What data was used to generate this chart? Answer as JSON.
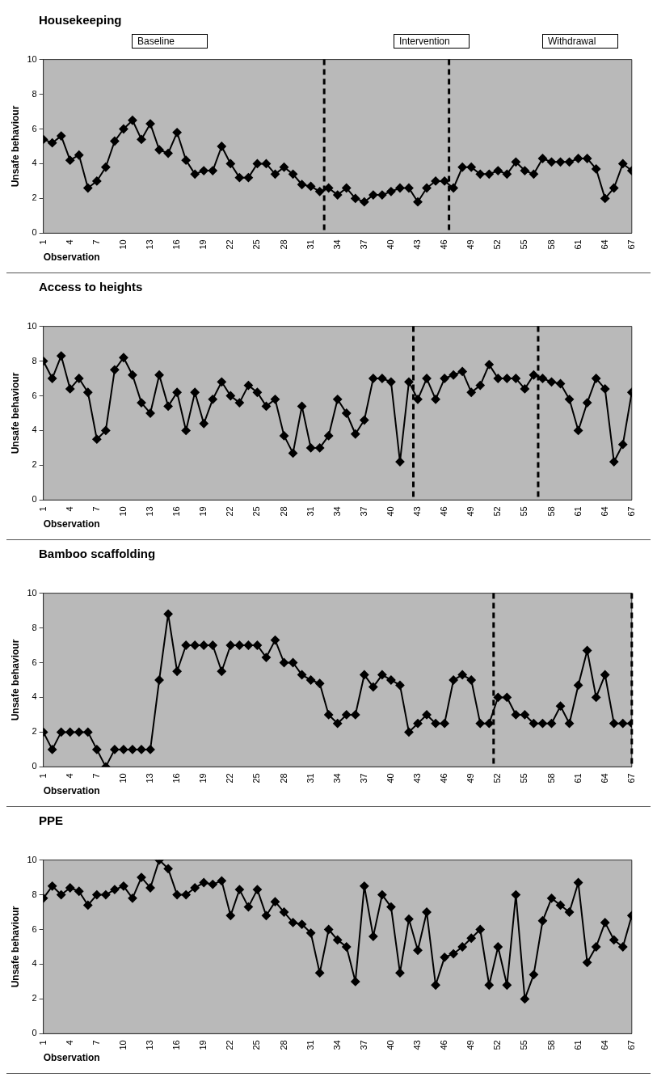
{
  "chart_data": [
    {
      "type": "line",
      "title": "Housekeeping",
      "xlabel": "Observation",
      "ylabel": "Unsafe behaviour",
      "annotations": [
        "Baseline",
        "Intervention",
        "Withdrawal"
      ],
      "marker": "diamond",
      "grid": false,
      "xlim": [
        1,
        67
      ],
      "xticks": [
        1,
        4,
        7,
        10,
        13,
        16,
        19,
        22,
        25,
        28,
        31,
        34,
        37,
        40,
        43,
        46,
        49,
        52,
        55,
        58,
        61,
        64,
        67
      ],
      "ylim": [
        0,
        10
      ],
      "yticks": [
        0,
        2,
        4,
        6,
        8,
        10
      ],
      "ref_lines": [
        {
          "axis": "x",
          "value": 32.5,
          "line_style": "dashed",
          "color": "#000000"
        },
        {
          "axis": "x",
          "value": 46.5,
          "line_style": "dashed",
          "color": "#000000"
        }
      ],
      "x": [
        1,
        2,
        3,
        4,
        5,
        6,
        7,
        8,
        9,
        10,
        11,
        12,
        13,
        14,
        15,
        16,
        17,
        18,
        19,
        20,
        21,
        22,
        23,
        24,
        25,
        26,
        27,
        28,
        29,
        30,
        31,
        32,
        33,
        34,
        35,
        36,
        37,
        38,
        39,
        40,
        41,
        42,
        43,
        44,
        45,
        46,
        47,
        48,
        49,
        50,
        51,
        52,
        53,
        54,
        55,
        56,
        57,
        58,
        59,
        60,
        61,
        62,
        63,
        64,
        65,
        66,
        67
      ],
      "series": [
        {
          "color": "#000000",
          "values": [
            5.4,
            5.2,
            5.6,
            4.2,
            4.5,
            2.6,
            3.0,
            3.8,
            5.3,
            6.0,
            6.5,
            5.4,
            6.3,
            4.8,
            4.6,
            5.8,
            4.2,
            3.4,
            3.6,
            3.6,
            5.0,
            4.0,
            3.2,
            3.2,
            4.0,
            4.0,
            3.4,
            3.8,
            3.4,
            2.8,
            2.7,
            2.4,
            2.6,
            2.2,
            2.6,
            2.0,
            1.8,
            2.2,
            2.2,
            2.4,
            2.6,
            2.6,
            1.8,
            2.6,
            3.0,
            3.0,
            2.6,
            3.8,
            3.8,
            3.4,
            3.4,
            3.6,
            3.4,
            4.1,
            3.6,
            3.4,
            4.3,
            4.1,
            4.1,
            4.1,
            4.3,
            4.3,
            3.7,
            2.0,
            2.6,
            4.0,
            3.6
          ]
        }
      ]
    },
    {
      "type": "line",
      "title": "Access to heights",
      "xlabel": "Observation",
      "ylabel": "Unsafe behaviour",
      "marker": "diamond",
      "grid": false,
      "xlim": [
        1,
        67
      ],
      "xticks": [
        1,
        4,
        7,
        10,
        13,
        16,
        19,
        22,
        25,
        28,
        31,
        34,
        37,
        40,
        43,
        46,
        49,
        52,
        55,
        58,
        61,
        64,
        67
      ],
      "ylim": [
        0,
        10
      ],
      "yticks": [
        0,
        2,
        4,
        6,
        8,
        10
      ],
      "ref_lines": [
        {
          "axis": "x",
          "value": 42.5,
          "line_style": "dashed",
          "color": "#000000"
        },
        {
          "axis": "x",
          "value": 56.5,
          "line_style": "dashed",
          "color": "#000000"
        }
      ],
      "x": [
        1,
        2,
        3,
        4,
        5,
        6,
        7,
        8,
        9,
        10,
        11,
        12,
        13,
        14,
        15,
        16,
        17,
        18,
        19,
        20,
        21,
        22,
        23,
        24,
        25,
        26,
        27,
        28,
        29,
        30,
        31,
        32,
        33,
        34,
        35,
        36,
        37,
        38,
        39,
        40,
        41,
        42,
        43,
        44,
        45,
        46,
        47,
        48,
        49,
        50,
        51,
        52,
        53,
        54,
        55,
        56,
        57,
        58,
        59,
        60,
        61,
        62,
        63,
        64,
        65,
        66,
        67
      ],
      "series": [
        {
          "color": "#000000",
          "values": [
            8.0,
            7.0,
            8.3,
            6.4,
            7.0,
            6.2,
            3.5,
            4.0,
            7.5,
            8.2,
            7.2,
            5.6,
            5.0,
            7.2,
            5.4,
            6.2,
            4.0,
            6.2,
            4.4,
            5.8,
            6.8,
            6.0,
            5.6,
            6.6,
            6.2,
            5.4,
            5.8,
            3.7,
            2.7,
            5.4,
            3.0,
            3.0,
            3.7,
            5.8,
            5.0,
            3.8,
            4.6,
            7.0,
            7.0,
            6.8,
            2.2,
            6.8,
            5.8,
            7.0,
            5.8,
            7.0,
            7.2,
            7.4,
            6.2,
            6.6,
            7.8,
            7.0,
            7.0,
            7.0,
            6.4,
            7.2,
            7.0,
            6.8,
            6.7,
            5.8,
            4.0,
            5.6,
            7.0,
            6.4,
            2.2,
            3.2,
            6.2
          ]
        }
      ]
    },
    {
      "type": "line",
      "title": "Bamboo scaffolding",
      "xlabel": "Observation",
      "ylabel": "Unsafe behaviour",
      "marker": "diamond",
      "grid": false,
      "xlim": [
        1,
        67
      ],
      "xticks": [
        1,
        4,
        7,
        10,
        13,
        16,
        19,
        22,
        25,
        28,
        31,
        34,
        37,
        40,
        43,
        46,
        49,
        52,
        55,
        58,
        61,
        64,
        67
      ],
      "ylim": [
        0,
        10
      ],
      "yticks": [
        0,
        2,
        4,
        6,
        8,
        10
      ],
      "ref_lines": [
        {
          "axis": "x",
          "value": 51.5,
          "line_style": "dashed",
          "color": "#000000"
        },
        {
          "axis": "x",
          "value": 67,
          "line_style": "dashed",
          "color": "#000000"
        }
      ],
      "x": [
        1,
        2,
        3,
        4,
        5,
        6,
        7,
        8,
        9,
        10,
        11,
        12,
        13,
        14,
        15,
        16,
        17,
        18,
        19,
        20,
        21,
        22,
        23,
        24,
        25,
        26,
        27,
        28,
        29,
        30,
        31,
        32,
        33,
        34,
        35,
        36,
        37,
        38,
        39,
        40,
        41,
        42,
        43,
        44,
        45,
        46,
        47,
        48,
        49,
        50,
        51,
        52,
        53,
        54,
        55,
        56,
        57,
        58,
        59,
        60,
        61,
        62,
        63,
        64,
        65,
        66,
        67
      ],
      "series": [
        {
          "color": "#000000",
          "values": [
            2,
            1,
            2,
            2,
            2,
            2,
            1,
            0,
            1,
            1,
            1,
            1,
            1,
            5,
            8.8,
            5.5,
            7,
            7,
            7,
            7,
            5.5,
            7,
            7,
            7,
            7,
            6.3,
            7.3,
            6,
            6,
            5.3,
            5,
            4.8,
            3,
            2.5,
            3,
            3,
            5.3,
            4.6,
            5.3,
            5,
            4.7,
            2,
            2.5,
            3,
            2.5,
            2.5,
            5,
            5.3,
            5,
            2.5,
            2.5,
            4,
            4,
            3,
            3,
            2.5,
            2.5,
            2.5,
            3.5,
            2.5,
            4.7,
            6.7,
            4,
            5.3,
            2.5,
            2.5,
            2.5
          ]
        }
      ]
    },
    {
      "type": "line",
      "title": "PPE",
      "xlabel": "Observation",
      "ylabel": "Unsafe behaviour",
      "marker": "diamond",
      "grid": false,
      "xlim": [
        1,
        67
      ],
      "xticks": [
        1,
        4,
        7,
        10,
        13,
        16,
        19,
        22,
        25,
        28,
        31,
        34,
        37,
        40,
        43,
        46,
        49,
        52,
        55,
        58,
        61,
        64,
        67
      ],
      "ylim": [
        0,
        10
      ],
      "yticks": [
        0,
        2,
        4,
        6,
        8,
        10
      ],
      "x": [
        1,
        2,
        3,
        4,
        5,
        6,
        7,
        8,
        9,
        10,
        11,
        12,
        13,
        14,
        15,
        16,
        17,
        18,
        19,
        20,
        21,
        22,
        23,
        24,
        25,
        26,
        27,
        28,
        29,
        30,
        31,
        32,
        33,
        34,
        35,
        36,
        37,
        38,
        39,
        40,
        41,
        42,
        43,
        44,
        45,
        46,
        47,
        48,
        49,
        50,
        51,
        52,
        53,
        54,
        55,
        56,
        57,
        58,
        59,
        60,
        61,
        62,
        63,
        64,
        65,
        66,
        67
      ],
      "series": [
        {
          "color": "#000000",
          "values": [
            7.8,
            8.5,
            8.0,
            8.4,
            8.2,
            7.4,
            8.0,
            8.0,
            8.3,
            8.5,
            7.8,
            9.0,
            8.4,
            10.0,
            9.5,
            8.0,
            8.0,
            8.4,
            8.7,
            8.6,
            8.8,
            6.8,
            8.3,
            7.3,
            8.3,
            6.8,
            7.6,
            7.0,
            6.4,
            6.3,
            5.8,
            3.5,
            6.0,
            5.4,
            5.0,
            3.0,
            8.5,
            5.6,
            8.0,
            7.3,
            3.5,
            6.6,
            4.8,
            7.0,
            2.8,
            4.4,
            4.6,
            5.0,
            5.5,
            6.0,
            2.8,
            5.0,
            2.8,
            8.0,
            2.0,
            3.4,
            6.5,
            7.8,
            7.4,
            7.0,
            8.7,
            4.1,
            5.0,
            6.4,
            5.4,
            5.0,
            6.8
          ]
        }
      ]
    }
  ]
}
